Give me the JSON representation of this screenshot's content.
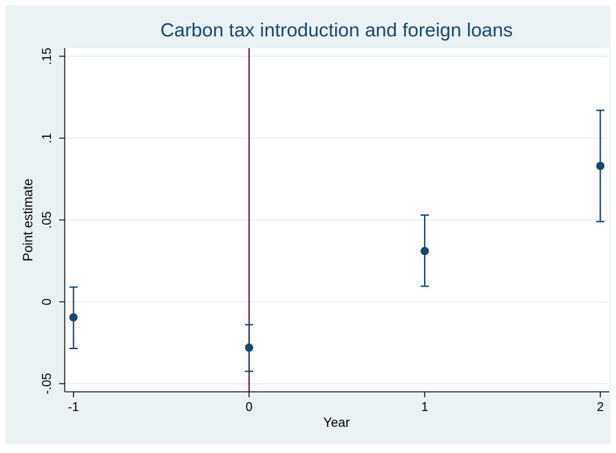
{
  "chart_data": {
    "type": "scatter",
    "title": "Carbon tax introduction and foreign loans",
    "xlabel": "Year",
    "ylabel": "Point estimate",
    "xlim": [
      -1.05,
      2.05
    ],
    "ylim": [
      -0.055,
      0.155
    ],
    "x_ticks": [
      -1,
      0,
      1,
      2
    ],
    "x_tick_labels": [
      "-1",
      "0",
      "1",
      "2"
    ],
    "y_ticks": [
      -0.05,
      0,
      0.05,
      0.1,
      0.15
    ],
    "y_tick_labels": [
      "-.05",
      "0",
      ".05",
      ".1",
      ".15"
    ],
    "grid": true,
    "reference_line_x": 0,
    "points": [
      {
        "x": -1,
        "y": -0.0095,
        "ci_low": -0.0285,
        "ci_high": 0.009
      },
      {
        "x": 0,
        "y": -0.028,
        "ci_low": -0.0425,
        "ci_high": -0.014
      },
      {
        "x": 1,
        "y": 0.031,
        "ci_low": 0.0095,
        "ci_high": 0.053
      },
      {
        "x": 2,
        "y": 0.083,
        "ci_low": 0.049,
        "ci_high": 0.117
      }
    ]
  },
  "colors": {
    "outer_background": "#eaf2f3",
    "plot_background": "#ffffff",
    "grid": "#eaf2f3",
    "axis": "#000000",
    "marker": "#1a476f",
    "error_bar": "#1a476f",
    "reference_line": "#90103a",
    "title": "#1a476f",
    "text": "#000000"
  }
}
